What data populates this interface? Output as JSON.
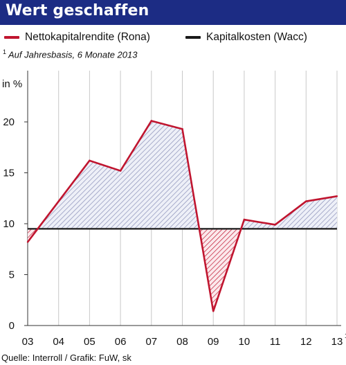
{
  "header": {
    "title": "Wert geschaffen"
  },
  "footnote": {
    "mark": "1",
    "text": "Auf Jahresbasis, 6 Monate 2013"
  },
  "source": "Quelle: Interroll / Grafik: FuW, sk",
  "colors": {
    "title_bg": "#1c2c84",
    "rona": "#c0152f",
    "wacc": "#1a1a1a",
    "hatch_above": "#8a90b8",
    "hatch_below": "#c0152f",
    "grid": "#c8c8c8"
  },
  "chart_data": {
    "type": "line",
    "ylabel": "in %",
    "ylim": [
      0,
      22
    ],
    "yticks": [
      "0",
      "5",
      "10",
      "15",
      "20"
    ],
    "categories": [
      "03",
      "04",
      "05",
      "06",
      "07",
      "08",
      "09",
      "10",
      "11",
      "12",
      "13"
    ],
    "last_category_note": "1",
    "grid": "vertical",
    "legend_position": "top",
    "series": [
      {
        "name": "Nettokapitalrendite (Rona)",
        "color": "#c0152f",
        "values": [
          8.2,
          12.2,
          16.2,
          15.2,
          20.1,
          19.3,
          1.4,
          10.4,
          9.9,
          12.2,
          12.7
        ]
      },
      {
        "name": "Kapitalkosten (Wacc)",
        "color": "#1a1a1a",
        "values": [
          9.5,
          9.5,
          9.5,
          9.5,
          9.5,
          9.5,
          9.5,
          9.5,
          9.5,
          9.5,
          9.5
        ]
      }
    ]
  }
}
